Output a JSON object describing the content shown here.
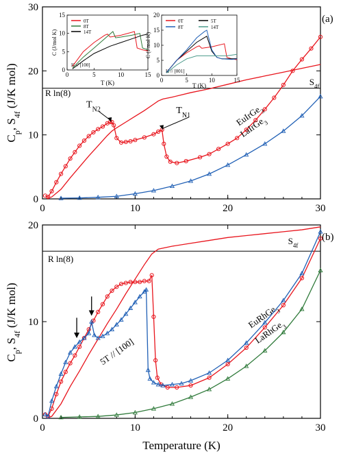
{
  "colors": {
    "red": "#e8141c",
    "blue": "#1f5fb5",
    "green": "#2f7a3a",
    "teal": "#4a9a8a",
    "black": "#000000"
  },
  "xlabel": "Temperature (K)",
  "chart_data": [
    {
      "type": "line",
      "panel_label": "(a)",
      "ylabel": "C_p, S_4f (J/K mol)",
      "xlim": [
        0,
        30
      ],
      "ylim": [
        0,
        30
      ],
      "xticks": [
        0,
        10,
        20,
        30
      ],
      "yticks": [
        0,
        10,
        20,
        30
      ],
      "reference_line": {
        "label": "R ln(8)",
        "y": 17.29
      },
      "annotations": [
        {
          "text": "T_N2",
          "x": 5.5,
          "y": 14.3,
          "target": [
            7.4,
            12.0
          ]
        },
        {
          "text": "T_N1",
          "x": 15.2,
          "y": 13.4,
          "target": [
            13.0,
            10.8
          ]
        }
      ],
      "series": [
        {
          "name": "S_4f",
          "color": "#e8141c",
          "marker": "none",
          "label_position": [
            28.8,
            17.8
          ],
          "x": [
            0.5,
            1,
            2,
            3,
            4,
            5,
            6,
            7,
            7.5,
            8,
            9,
            10,
            11,
            12,
            12.5,
            13,
            14,
            16,
            18,
            20,
            22,
            24,
            26,
            28,
            30
          ],
          "y": [
            0.1,
            0.3,
            1.5,
            3.3,
            5.0,
            6.7,
            8.3,
            9.9,
            10.6,
            11.1,
            12.0,
            12.9,
            13.8,
            14.8,
            15.3,
            15.6,
            15.9,
            16.6,
            17.2,
            17.9,
            18.6,
            19.2,
            19.8,
            20.4,
            21.0
          ]
        },
        {
          "name": "EuIrGe3",
          "color": "#e8141c",
          "marker": "circle",
          "label_position": [
            22.5,
            12.7
          ],
          "x": [
            0.3,
            0.6,
            1,
            1.5,
            2,
            2.5,
            3,
            3.5,
            4,
            4.5,
            5,
            5.5,
            6,
            6.5,
            7,
            7.3,
            7.5,
            7.7,
            8,
            8.5,
            9,
            9.5,
            10,
            11,
            12,
            12.5,
            12.9,
            13.1,
            13.4,
            13.8,
            14.5,
            15.5,
            17,
            18,
            19,
            20,
            21,
            22,
            23,
            24,
            25,
            26,
            27,
            28,
            29,
            30
          ],
          "y": [
            0.5,
            0.3,
            1.2,
            2.6,
            3.9,
            5.1,
            6.3,
            7.3,
            8.3,
            9.1,
            9.8,
            10.4,
            10.9,
            11.3,
            11.8,
            12.0,
            12.0,
            11.5,
            9.5,
            8.8,
            8.9,
            9.0,
            9.2,
            9.6,
            10.1,
            10.5,
            10.8,
            8.6,
            6.6,
            5.8,
            5.6,
            5.9,
            6.5,
            7.0,
            7.8,
            8.6,
            9.5,
            10.8,
            12.3,
            14.0,
            15.8,
            17.8,
            20.0,
            21.8,
            23.5,
            25.3
          ]
        },
        {
          "name": "LaIrGe3",
          "color": "#1f5fb5",
          "marker": "triangle",
          "label_position": [
            22.9,
            10.9
          ],
          "x": [
            2,
            4,
            6,
            8,
            10,
            12,
            14,
            16,
            18,
            20,
            22,
            24,
            26,
            28,
            30
          ],
          "y": [
            0.1,
            0.15,
            0.25,
            0.4,
            0.8,
            1.3,
            2.0,
            2.8,
            3.9,
            5.3,
            6.9,
            8.6,
            10.6,
            13.0,
            16.0
          ]
        }
      ]
    },
    {
      "type": "line",
      "panel_label": "(b)",
      "ylabel": "C_p, S_4f (J/K mol)",
      "xlim": [
        0,
        30
      ],
      "ylim": [
        0,
        20
      ],
      "xticks": [
        0,
        10,
        20,
        30
      ],
      "yticks": [
        0,
        10,
        20
      ],
      "reference_line": {
        "label": "R ln(8)",
        "y": 17.29
      },
      "annotations": [
        {
          "text": "5T // [100]",
          "x": 6.5,
          "y": 5.5
        }
      ],
      "arrows": [
        {
          "x": 3.7,
          "y_from": 10.4,
          "y_to": 8.3
        },
        {
          "x": 5.3,
          "y_from": 12.6,
          "y_to": 10.6
        }
      ],
      "series": [
        {
          "name": "S_4f",
          "color": "#e8141c",
          "marker": "none",
          "label_position": [
            26.5,
            18.0
          ],
          "x": [
            0.5,
            1,
            2,
            3,
            4,
            5,
            6,
            7,
            8,
            9,
            10,
            11,
            11.8,
            12.5,
            14,
            16,
            18,
            20,
            22,
            24,
            26,
            28,
            30
          ],
          "y": [
            0.05,
            0.2,
            1.5,
            3.3,
            4.9,
            6.6,
            8.2,
            9.8,
            11.3,
            12.9,
            14.4,
            15.9,
            17.0,
            17.5,
            17.8,
            18.1,
            18.4,
            18.7,
            18.9,
            19.1,
            19.3,
            19.5,
            19.8
          ]
        },
        {
          "name": "EuRhGe3",
          "color": "#e8141c",
          "marker": "circle",
          "label_position": [
            24.0,
            10.3
          ],
          "x": [
            0.3,
            0.6,
            1,
            1.5,
            2,
            2.5,
            3,
            3.5,
            4,
            4.5,
            5,
            5.5,
            6,
            6.5,
            7,
            7.5,
            8,
            8.5,
            9,
            9.5,
            10,
            10.5,
            11,
            11.5,
            11.8,
            12.0,
            12.2,
            12.4,
            12.8,
            13.5,
            14.5,
            16,
            18,
            20,
            22,
            24,
            26,
            28,
            30
          ],
          "y": [
            0.4,
            0.2,
            1.0,
            2.5,
            3.8,
            4.8,
            5.7,
            6.5,
            7.4,
            8.3,
            9.2,
            10.1,
            11.0,
            11.8,
            12.6,
            13.2,
            13.6,
            13.9,
            14.0,
            14.1,
            14.1,
            14.1,
            14.2,
            14.2,
            14.8,
            10.5,
            6.0,
            4.2,
            3.5,
            3.2,
            3.2,
            3.4,
            4.2,
            5.6,
            7.3,
            9.4,
            11.7,
            14.5,
            18.6
          ]
        },
        {
          "name": "5T // [100]",
          "color": "#1f5fb5",
          "marker": "triangle",
          "x": [
            0.3,
            0.6,
            1,
            1.5,
            2,
            2.5,
            3,
            3.5,
            4,
            4.5,
            5,
            5.3,
            5.6,
            6,
            6.5,
            7,
            7.5,
            8,
            8.5,
            9,
            9.5,
            10,
            10.5,
            11,
            11.2,
            11.4,
            11.6,
            12,
            12.5,
            13,
            14,
            15,
            16,
            18,
            20,
            22,
            24,
            26,
            28,
            30
          ],
          "y": [
            0.4,
            0.2,
            1.8,
            3.3,
            4.6,
            5.8,
            6.8,
            7.4,
            7.9,
            8.3,
            8.8,
            10.0,
            8.6,
            8.3,
            8.5,
            8.8,
            9.2,
            9.7,
            10.2,
            10.8,
            11.4,
            12.0,
            12.6,
            13.1,
            13.3,
            5.0,
            4.1,
            3.7,
            3.5,
            3.4,
            3.5,
            3.6,
            3.9,
            4.7,
            6.0,
            7.8,
            9.9,
            12.2,
            15.0,
            19.3
          ]
        },
        {
          "name": "LaRhGe3",
          "color": "#2f7a3a",
          "marker": "triangle",
          "label_position": [
            24.7,
            8.7
          ],
          "x": [
            2,
            4,
            6,
            8,
            10,
            12,
            14,
            16,
            18,
            20,
            22,
            24,
            26,
            28,
            30
          ],
          "y": [
            0.1,
            0.15,
            0.2,
            0.35,
            0.6,
            1.0,
            1.5,
            2.2,
            3.0,
            4.1,
            5.4,
            7.0,
            8.9,
            11.3,
            15.3
          ]
        }
      ]
    },
    {
      "type": "line",
      "inset_of": "(a)",
      "xlabel": "T (K)",
      "ylabel": "C (J/mol K)",
      "xlim": [
        0,
        15
      ],
      "ylim": [
        0,
        15
      ],
      "xticks": [
        0,
        5,
        10,
        15
      ],
      "yticks": [
        0,
        5,
        10,
        15
      ],
      "field_direction": "H // [100]",
      "series": [
        {
          "name": "0T",
          "color": "#e8141c",
          "x": [
            1,
            3,
            5,
            7,
            7.5,
            8,
            10,
            12.5,
            13,
            14,
            15
          ],
          "y": [
            1,
            5,
            7.5,
            9.5,
            9.8,
            9,
            9.5,
            10.5,
            6,
            5.5,
            5.2
          ]
        },
        {
          "name": "8T",
          "color": "#2f7a3a",
          "x": [
            1,
            3,
            5,
            8.5,
            9,
            10,
            12,
            13.5,
            14,
            15
          ],
          "y": [
            0.5,
            3.5,
            6,
            10.5,
            8.8,
            9,
            9.5,
            10,
            6,
            5.5
          ]
        },
        {
          "name": "14T",
          "color": "#000000",
          "x": [
            1,
            3,
            5,
            8,
            10,
            12,
            14,
            15
          ],
          "y": [
            0.3,
            2.5,
            4.5,
            6.5,
            7.5,
            8.5,
            9.5,
            9.8
          ]
        }
      ]
    },
    {
      "type": "line",
      "inset_of": "(a)",
      "xlabel": "T (K)",
      "ylabel": "C (J/mol K)",
      "xlim": [
        0,
        15
      ],
      "ylim": [
        0,
        20
      ],
      "xticks": [
        0,
        5,
        10,
        15
      ],
      "yticks": [
        0,
        5,
        10,
        15,
        20
      ],
      "field_direction": "H // [001]",
      "series": [
        {
          "name": "0T",
          "color": "#e8141c",
          "x": [
            1,
            3,
            5,
            7,
            7.5,
            8,
            10,
            12.5,
            13,
            14,
            15
          ],
          "y": [
            1,
            5,
            7.5,
            9.5,
            9.8,
            9,
            9.5,
            10.5,
            6,
            5.5,
            5.2
          ]
        },
        {
          "name": "5T",
          "color": "#000000",
          "x": [
            1,
            3,
            5,
            7,
            8,
            9,
            10,
            11,
            12,
            14,
            15
          ],
          "y": [
            1,
            5,
            8,
            11,
            12,
            13,
            8,
            6,
            5.5,
            5.5,
            5.6
          ]
        },
        {
          "name": "8T",
          "color": "#1f5fb5",
          "x": [
            1,
            3,
            5,
            7,
            8.5,
            9,
            10,
            11,
            12,
            14,
            15
          ],
          "y": [
            1,
            5,
            8.5,
            12.5,
            14.5,
            15,
            8.5,
            6,
            5.5,
            5.3,
            5.5
          ]
        },
        {
          "name": "14T",
          "color": "#4a9a8a",
          "x": [
            1,
            3,
            5,
            7,
            9,
            11,
            13,
            15
          ],
          "y": [
            0.8,
            3.5,
            5.5,
            6.5,
            6.5,
            6.5,
            6.5,
            7
          ]
        }
      ]
    }
  ]
}
